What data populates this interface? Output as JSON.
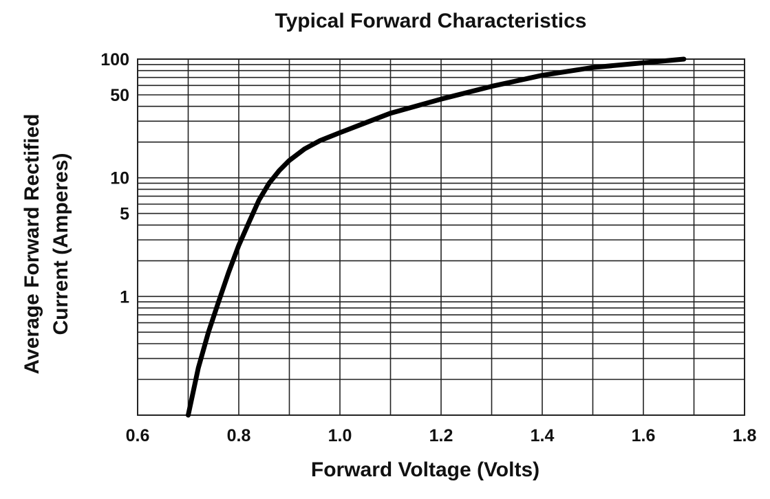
{
  "chart_data": {
    "type": "line",
    "title": "Typical Forward Characteristics",
    "xlabel": "Forward Voltage (Volts)",
    "ylabel_line1": "Average Forward Rectified",
    "ylabel_line2": "Current (Amperes)",
    "xlim": [
      0.6,
      1.8
    ],
    "ylim": [
      0.1,
      100
    ],
    "y_scale": "log",
    "grid": true,
    "x_ticks": [
      {
        "value": 0.6,
        "label": "0.6"
      },
      {
        "value": 0.8,
        "label": "0.8"
      },
      {
        "value": 1.0,
        "label": "1.0"
      },
      {
        "value": 1.2,
        "label": "1.2"
      },
      {
        "value": 1.4,
        "label": "1.4"
      },
      {
        "value": 1.6,
        "label": "1.6"
      },
      {
        "value": 1.8,
        "label": "1.8"
      }
    ],
    "y_ticks": [
      {
        "value": 100,
        "label": "100"
      },
      {
        "value": 50,
        "label": "50"
      },
      {
        "value": 10,
        "label": "10"
      },
      {
        "value": 5,
        "label": "5"
      },
      {
        "value": 1,
        "label": "1"
      }
    ],
    "series": [
      {
        "color": "#000000",
        "x": [
          0.7,
          0.72,
          0.74,
          0.76,
          0.78,
          0.8,
          0.82,
          0.84,
          0.86,
          0.88,
          0.9,
          0.93,
          0.96,
          1.0,
          1.05,
          1.1,
          1.2,
          1.3,
          1.4,
          1.5,
          1.6,
          1.68
        ],
        "y": [
          0.1,
          0.25,
          0.5,
          0.9,
          1.6,
          2.7,
          4.2,
          6.5,
          9.0,
          11.5,
          14.0,
          17.5,
          20.5,
          24.0,
          29.0,
          35.0,
          46.0,
          59.0,
          73.0,
          85.0,
          93.0,
          100.0
        ]
      }
    ]
  }
}
